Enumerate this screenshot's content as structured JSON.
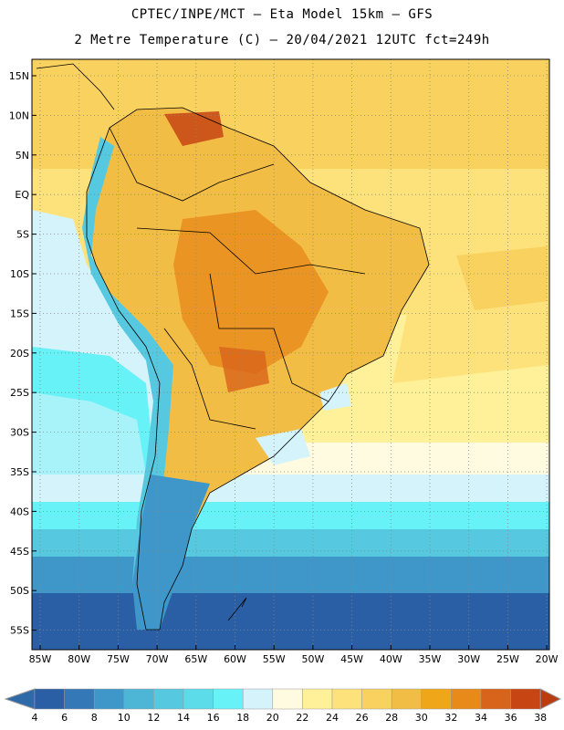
{
  "header": {
    "line1": "CPTEC/INPE/MCT –  Eta Model 15km – GFS",
    "line2": "2 Metre Temperature (C) – 20/04/2021 12UTC fct=249h"
  },
  "map": {
    "lat_labels": [
      "15N",
      "10N",
      "5N",
      "EQ",
      "5S",
      "10S",
      "15S",
      "20S",
      "25S",
      "30S",
      "35S",
      "40S",
      "45S",
      "50S",
      "55S"
    ],
    "lon_labels": [
      "85W",
      "80W",
      "75W",
      "70W",
      "65W",
      "60W",
      "55W",
      "50W",
      "45W",
      "40W",
      "35W",
      "30W",
      "25W",
      "20W"
    ]
  },
  "colorbar": {
    "labels": [
      "4",
      "6",
      "8",
      "10",
      "12",
      "14",
      "16",
      "18",
      "20",
      "22",
      "24",
      "26",
      "28",
      "30",
      "32",
      "34",
      "36",
      "38"
    ],
    "colors": [
      "#2a5fa5",
      "#3478b8",
      "#3f97c9",
      "#4db5d6",
      "#56c9e0",
      "#5cdbe9",
      "#66f2f7",
      "#d4f3fb",
      "#fffbe0",
      "#fff199",
      "#fde27c",
      "#f8d15e",
      "#f2bd45",
      "#f0a619",
      "#e78a1a",
      "#d8631a",
      "#c74413"
    ],
    "below_color": "#2f6aa8",
    "above_color": "#b93d10"
  }
}
